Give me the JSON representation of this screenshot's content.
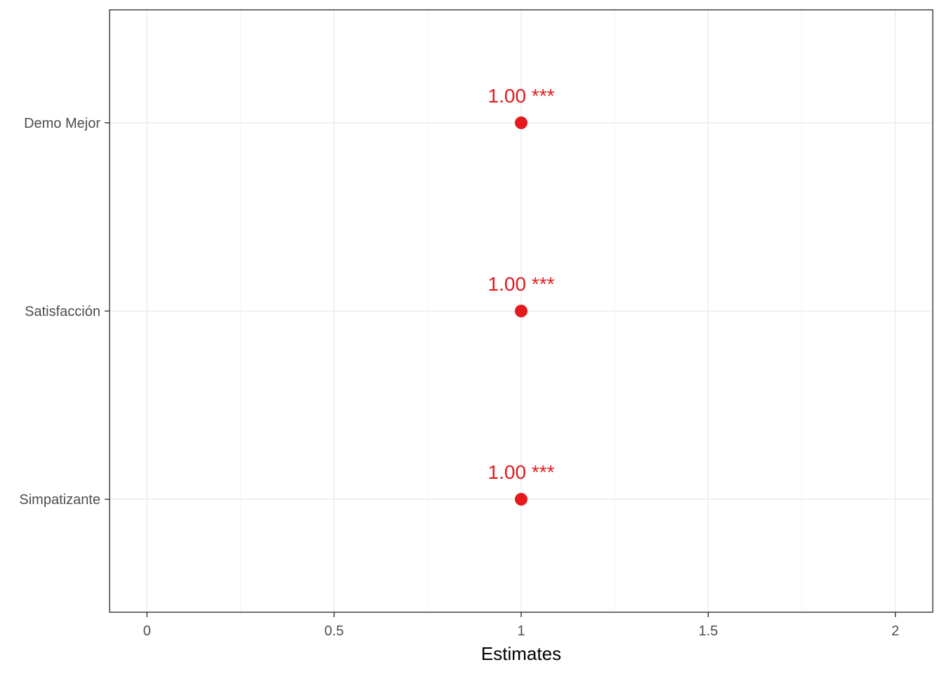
{
  "chart_data": {
    "type": "scatter",
    "xlabel": "Estimates",
    "ylabel": "",
    "title": "",
    "xlim": [
      -0.1,
      2.1
    ],
    "x_ticks": [
      0,
      0.5,
      1,
      1.5,
      2
    ],
    "x_tick_labels": [
      "0",
      "0.5",
      "1",
      "1.5",
      "2"
    ],
    "categories": [
      "Demo Mejor",
      "Satisfacción",
      "Simpatizante"
    ],
    "values": [
      1.0,
      1.0,
      1.0
    ],
    "labels": [
      "1.00 ***",
      "1.00 ***",
      "1.00 ***"
    ],
    "point_color": "#e41a1c",
    "grid": true,
    "legend": "none"
  }
}
